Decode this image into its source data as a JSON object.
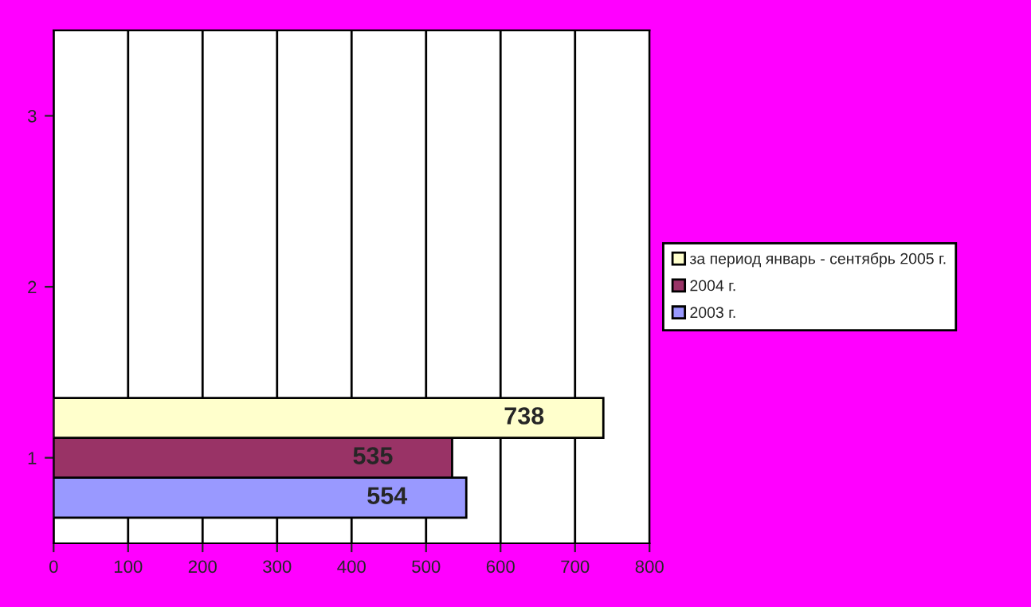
{
  "chart_data": {
    "type": "bar",
    "orientation": "horizontal",
    "categories": [
      "3",
      "2",
      "1"
    ],
    "series": [
      {
        "name": "2003 г.",
        "color": "#9999ff",
        "values": [
          null,
          null,
          554
        ]
      },
      {
        "name": "2004 г.",
        "color": "#993366",
        "values": [
          null,
          null,
          535
        ]
      },
      {
        "name": "за период январь - сентябрь 2005 г.",
        "color": "#ffffcc",
        "values": [
          null,
          null,
          738
        ]
      }
    ],
    "xlim": [
      0,
      800
    ],
    "xticks": [
      0,
      100,
      200,
      300,
      400,
      500,
      600,
      700,
      800
    ],
    "grid": "x",
    "legend": "right",
    "data_labels": true
  }
}
